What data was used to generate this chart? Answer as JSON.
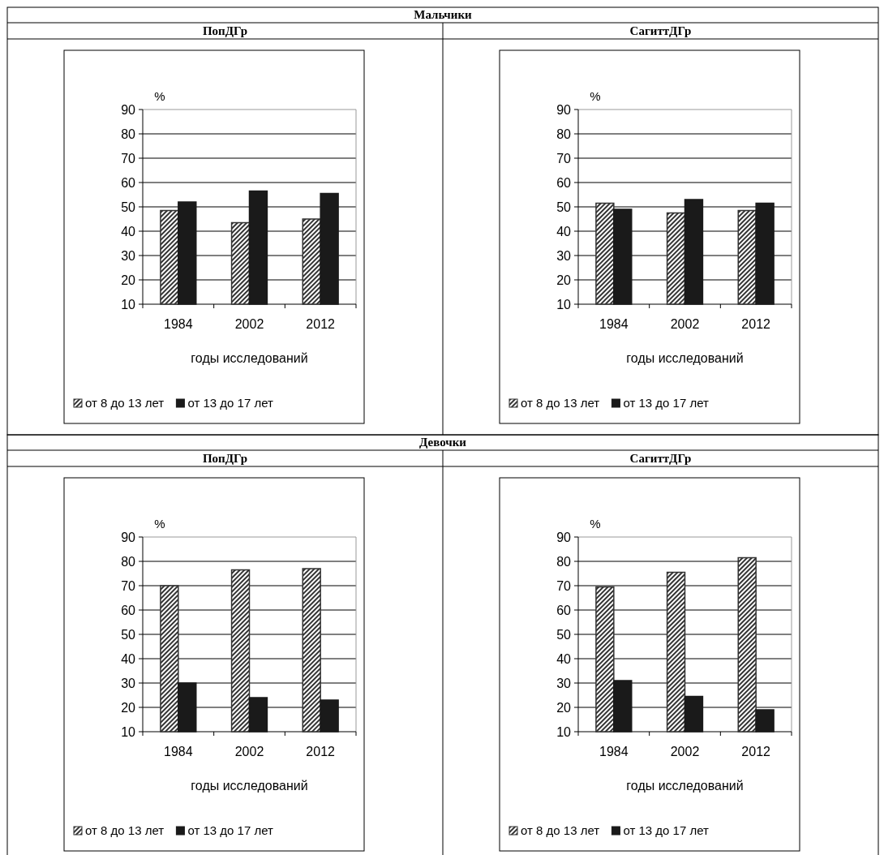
{
  "chart_data": [
    {
      "type": "bar",
      "annotations": [
        "Мальчики"
      ],
      "title": "ПопДГр",
      "ylabel": "%",
      "xlabel": "годы исследований",
      "categories": [
        "1984",
        "2002",
        "2012"
      ],
      "series": [
        {
          "name": "от 8 до 13 лет",
          "color": "#333333",
          "values": [
            48.5,
            43.5,
            45
          ]
        },
        {
          "name": "от 13 до 17 лет",
          "color": "#1a1a1a",
          "values": [
            52,
            56.5,
            55.5
          ]
        }
      ],
      "ylim": [
        10,
        90
      ],
      "yticks": [
        10,
        20,
        30,
        40,
        50,
        60,
        70,
        80,
        90
      ],
      "grid": "y",
      "legend": "bottom"
    },
    {
      "type": "bar",
      "title": "СагиттДГр",
      "ylabel": "%",
      "xlabel": "годы исследований",
      "categories": [
        "1984",
        "2002",
        "2012"
      ],
      "series": [
        {
          "name": "от 8 до 13 лет",
          "color": "#333333",
          "values": [
            51.5,
            47.5,
            48.5
          ]
        },
        {
          "name": "от 13 до 17 лет",
          "color": "#1a1a1a",
          "values": [
            49,
            53,
            51.5
          ]
        }
      ],
      "ylim": [
        10,
        90
      ],
      "yticks": [
        10,
        20,
        30,
        40,
        50,
        60,
        70,
        80,
        90
      ],
      "grid": "y",
      "legend": "bottom"
    },
    {
      "type": "bar",
      "annotations": [
        "Девочки"
      ],
      "title": "ПопДГр",
      "ylabel": "%",
      "xlabel": "годы исследований",
      "categories": [
        "1984",
        "2002",
        "2012"
      ],
      "series": [
        {
          "name": "от 8 до 13 лет",
          "color": "#333333",
          "values": [
            70,
            76.5,
            77
          ]
        },
        {
          "name": "от 13 до 17 лет",
          "color": "#1a1a1a",
          "values": [
            30,
            24,
            23
          ]
        }
      ],
      "ylim": [
        10,
        90
      ],
      "yticks": [
        10,
        20,
        30,
        40,
        50,
        60,
        70,
        80,
        90
      ],
      "grid": "y",
      "legend": "bottom"
    },
    {
      "type": "bar",
      "title": "СагиттДГр",
      "ylabel": "%",
      "xlabel": "годы исследований",
      "categories": [
        "1984",
        "2002",
        "2012"
      ],
      "series": [
        {
          "name": "от 8 до 13 лет",
          "color": "#333333",
          "values": [
            69.5,
            75.5,
            81.5
          ]
        },
        {
          "name": "от 13 до 17 лет",
          "color": "#1a1a1a",
          "values": [
            31,
            24.5,
            19
          ]
        }
      ],
      "ylim": [
        10,
        90
      ],
      "yticks": [
        10,
        20,
        30,
        40,
        50,
        60,
        70,
        80,
        90
      ],
      "grid": "y",
      "legend": "bottom"
    }
  ]
}
